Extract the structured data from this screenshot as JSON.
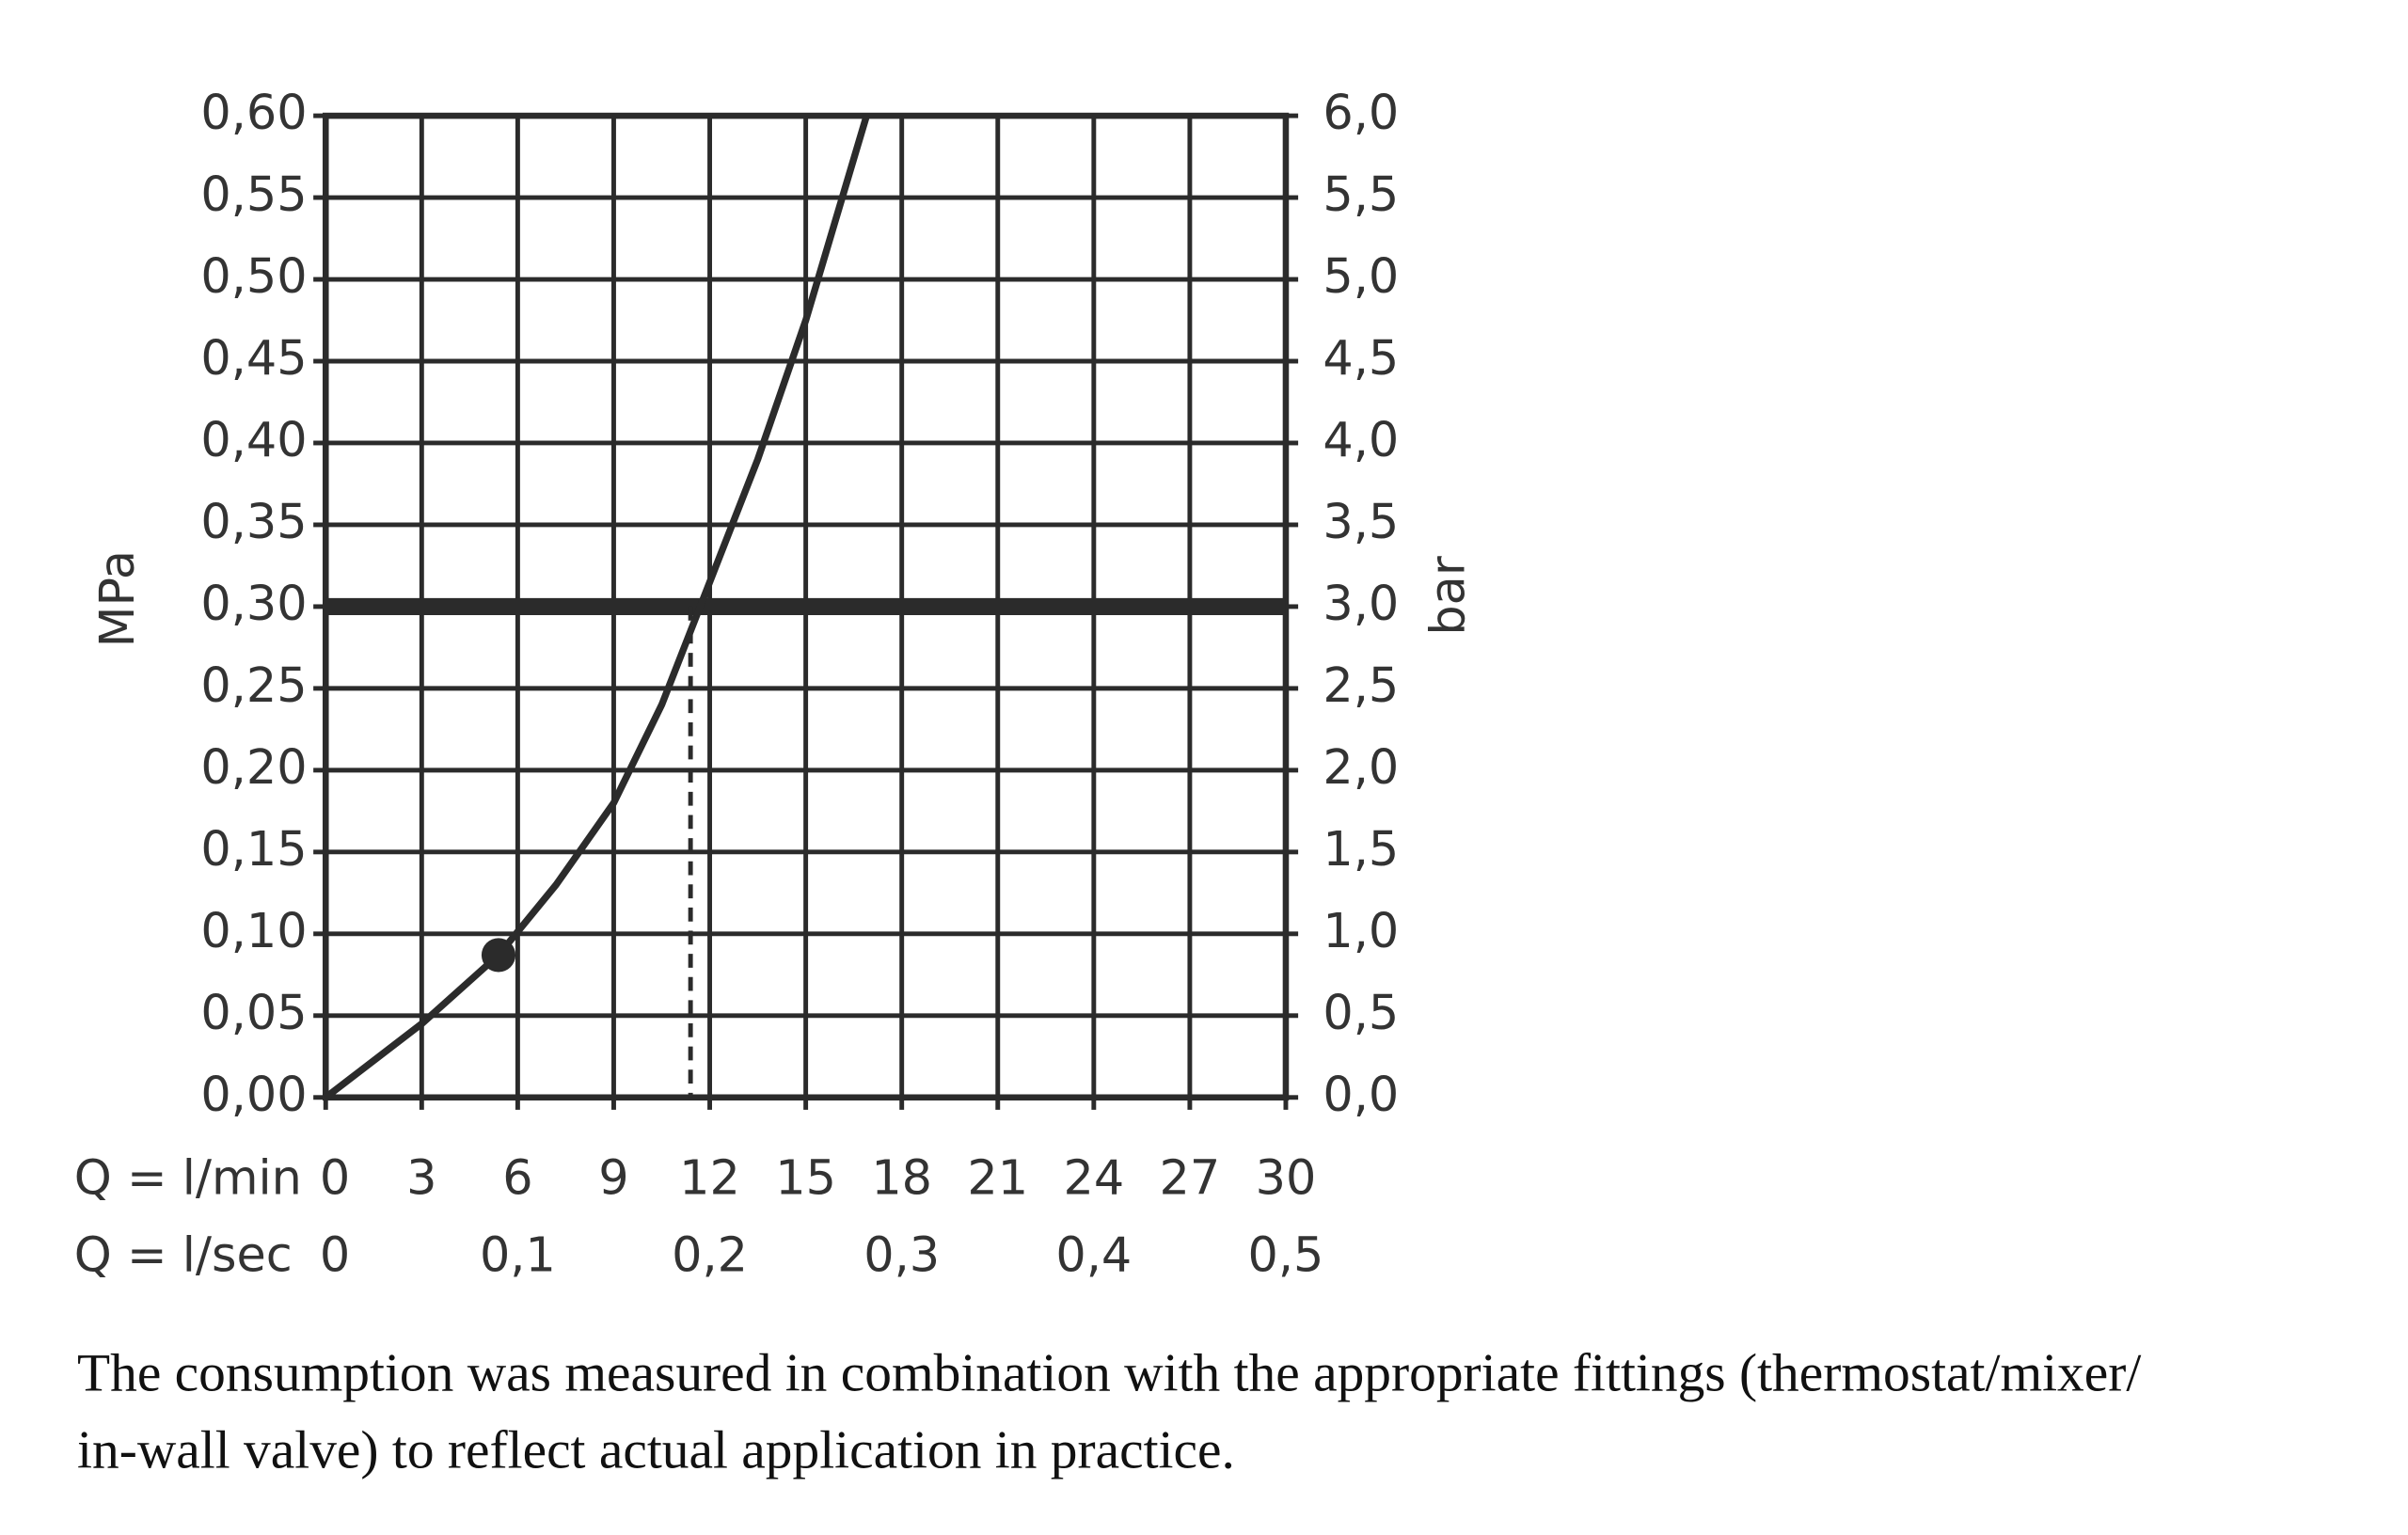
{
  "chart_data": {
    "type": "line",
    "y_label": "MPa",
    "y2_label": "bar",
    "x_label": "Q = l/min",
    "x2_label": "Q = l/sec",
    "x": [
      0,
      3,
      5.4,
      7.2,
      9,
      10.5,
      11.7,
      13.5,
      15,
      16.9
    ],
    "series": [
      {
        "color": "#2b2b2b",
        "values": [
          0,
          0.045,
          0.087,
          0.13,
          0.18,
          0.24,
          0.3,
          0.39,
          0.475,
          0.6
        ]
      }
    ],
    "xlim": [
      0,
      30
    ],
    "xticks": [
      0,
      3,
      6,
      9,
      12,
      15,
      18,
      21,
      24,
      27,
      30
    ],
    "x2lim": [
      0,
      0.5
    ],
    "x2ticks": [
      0,
      {
        "value": 0.1,
        "label": "0,1"
      },
      {
        "value": 0.2,
        "label": "0,2"
      },
      {
        "value": 0.3,
        "label": "0,3"
      },
      {
        "value": 0.4,
        "label": "0,4"
      },
      {
        "value": 0.5,
        "label": "0,5"
      }
    ],
    "ylim": [
      0,
      0.6
    ],
    "yticks": [
      {
        "value": 0,
        "label": "0,00"
      },
      {
        "value": 0.05,
        "label": "0,05"
      },
      {
        "value": 0.1,
        "label": "0,10"
      },
      {
        "value": 0.15,
        "label": "0,15"
      },
      {
        "value": 0.2,
        "label": "0,20"
      },
      {
        "value": 0.25,
        "label": "0,25"
      },
      {
        "value": 0.3,
        "label": "0,30"
      },
      {
        "value": 0.35,
        "label": "0,35"
      },
      {
        "value": 0.4,
        "label": "0,40"
      },
      {
        "value": 0.45,
        "label": "0,45"
      },
      {
        "value": 0.5,
        "label": "0,50"
      },
      {
        "value": 0.55,
        "label": "0,55"
      },
      {
        "value": 0.6,
        "label": "0,60"
      }
    ],
    "y2lim": [
      0,
      6
    ],
    "y2ticks": [
      {
        "value": 0,
        "label": "0,0"
      },
      {
        "value": 0.5,
        "label": "0,5"
      },
      {
        "value": 1,
        "label": "1,0"
      },
      {
        "value": 1.5,
        "label": "1,5"
      },
      {
        "value": 2,
        "label": "2,0"
      },
      {
        "value": 2.5,
        "label": "2,5"
      },
      {
        "value": 3,
        "label": "3,0"
      },
      {
        "value": 3.5,
        "label": "3,5"
      },
      {
        "value": 4,
        "label": "4,0"
      },
      {
        "value": 4.5,
        "label": "4,5"
      },
      {
        "value": 5,
        "label": "5,0"
      },
      {
        "value": 5.5,
        "label": "5,5"
      },
      {
        "value": 6,
        "label": "6,0"
      }
    ],
    "grid": true,
    "reference_line_y": 0.3,
    "reference_drop": {
      "x": 11.4,
      "y": 0.3
    },
    "marker": {
      "x": 5.4,
      "y": 0.087
    },
    "caption": [
      "The consumption was measured in combination with the appropriate fittings (thermostat/mixer/",
      "in-wall valve) to reflect actual application in practice."
    ]
  }
}
